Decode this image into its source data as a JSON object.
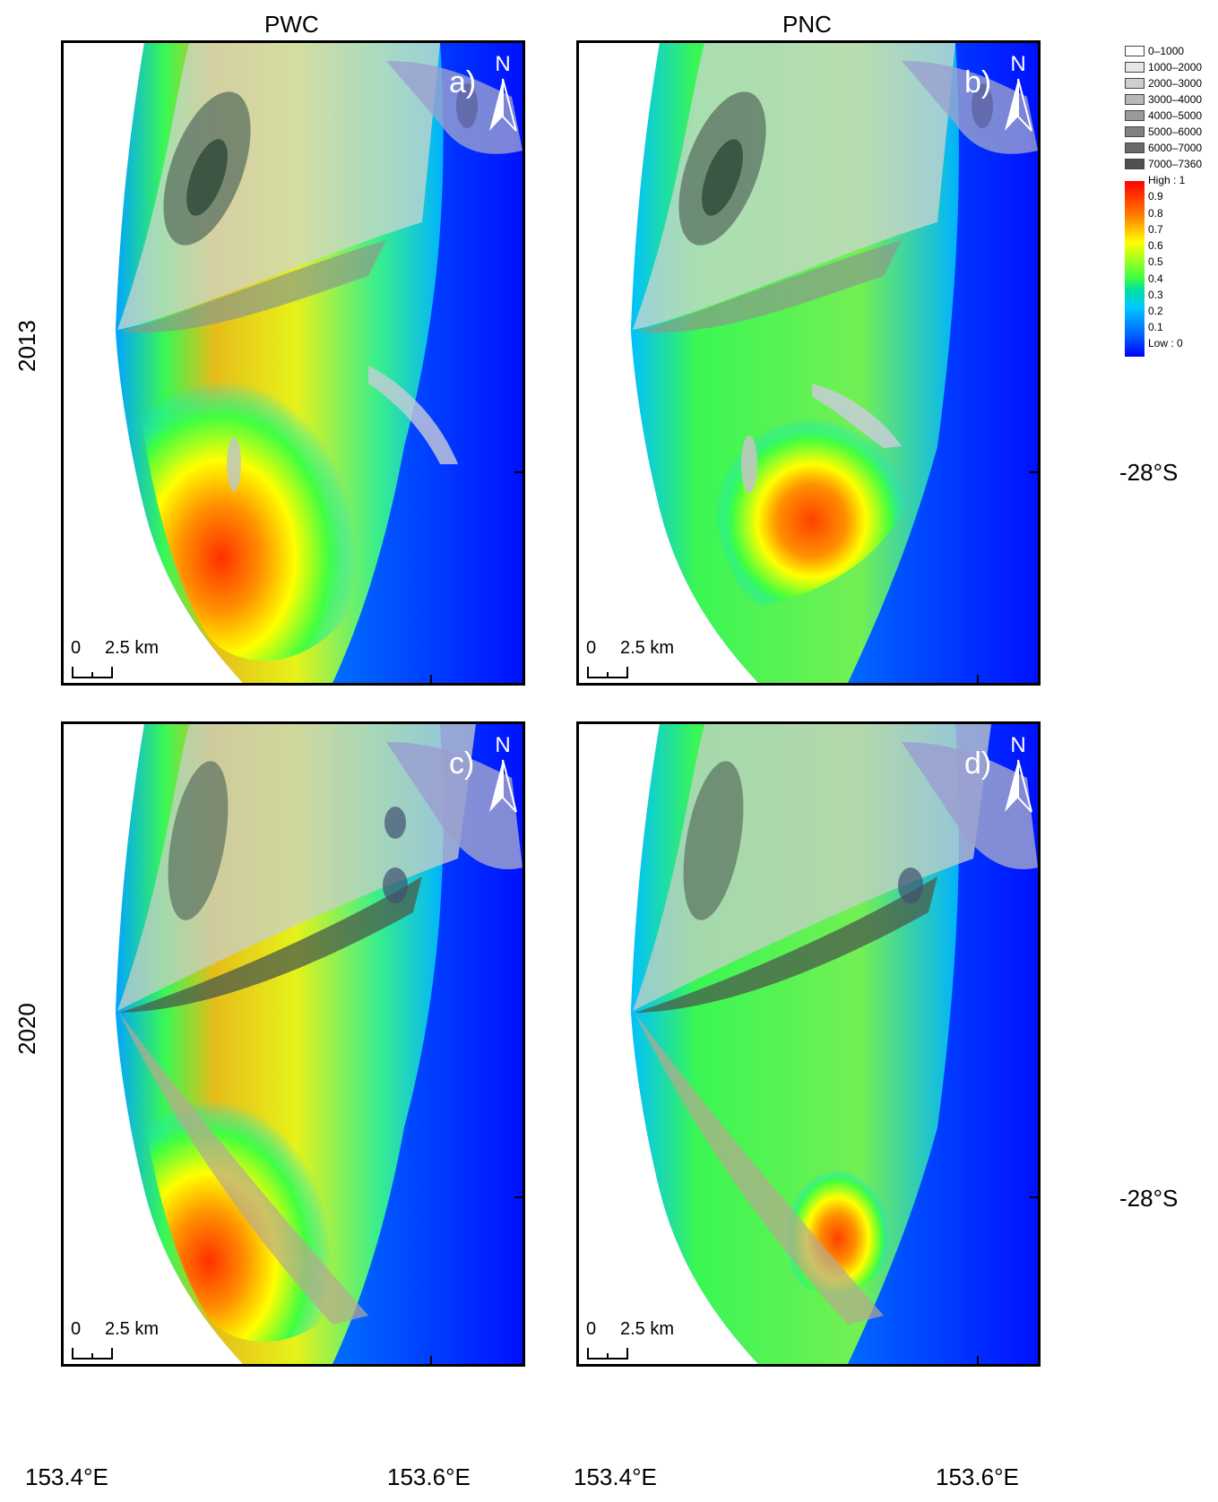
{
  "columns": [
    "PWC",
    "PNC"
  ],
  "rows": [
    "2013",
    "2020"
  ],
  "panels": [
    {
      "label": "a)",
      "north": "N",
      "scale_start": "0",
      "scale_text": "2.5 km"
    },
    {
      "label": "b)",
      "north": "N",
      "scale_start": "0",
      "scale_text": "2.5 km"
    },
    {
      "label": "c)",
      "north": "N",
      "scale_start": "0",
      "scale_text": "2.5 km"
    },
    {
      "label": "d)",
      "north": "N",
      "scale_start": "0",
      "scale_text": "2.5 km"
    }
  ],
  "lon_labels": [
    "153.4°E",
    "153.6°E"
  ],
  "lat_label": "-28°S",
  "legend": {
    "density_classes": [
      "0–1000",
      "1000–2000",
      "2000–3000",
      "3000–4000",
      "4000–5000",
      "5000–6000",
      "6000–7000",
      "7000–7360"
    ],
    "density_colors": [
      "#ffffff",
      "#e6e6e6",
      "#cfcfcf",
      "#b8b8b8",
      "#9a9a9a",
      "#828282",
      "#6a6a6a",
      "#505050"
    ],
    "ramp_high": "High : 1",
    "ramp_low": "Low : 0",
    "ramp_ticks": [
      "0.9",
      "0.8",
      "0.7",
      "0.6",
      "0.5",
      "0.4",
      "0.3",
      "0.2",
      "0.1"
    ],
    "ramp_colors": [
      "#ff0000",
      "#ff8000",
      "#ffff00",
      "#40ff40",
      "#00c8ff",
      "#0000ff"
    ]
  }
}
